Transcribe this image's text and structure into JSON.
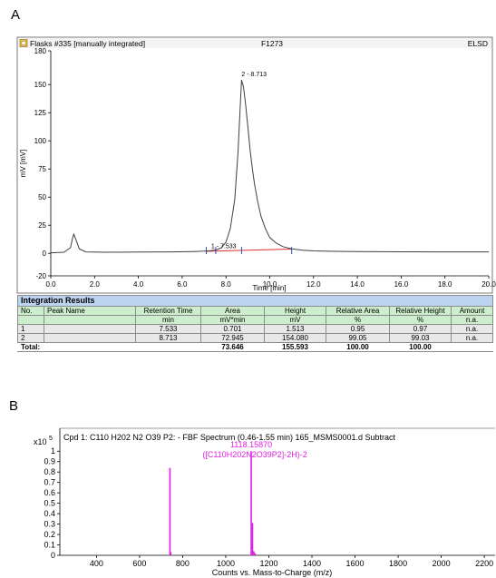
{
  "panel_a_label": "A",
  "panel_b_label": "B",
  "chart_data": [
    {
      "type": "line",
      "header_left": "Flasks #335 [manually integrated]",
      "header_center": "F1273",
      "header_right": "ELSD",
      "ylabel": "mV [mV]",
      "xlabel": "Time [min]",
      "xlim": [
        0,
        20
      ],
      "ylim": [
        -20,
        180
      ],
      "xticks": [
        "0.0",
        "2.0",
        "4.0",
        "6.0",
        "8.0",
        "10.0",
        "12.0",
        "14.0",
        "16.0",
        "18.0",
        "20.0"
      ],
      "yticks": [
        "-20",
        "0",
        "25",
        "50",
        "75",
        "100",
        "125",
        "150",
        "180"
      ],
      "ytick_values": [
        -20,
        0,
        25,
        50,
        75,
        100,
        125,
        150,
        180
      ],
      "trace_color": "#404040",
      "baseline_color": "#e03030",
      "marker_color": "#3050c0",
      "series": [
        {
          "x": [
            0,
            0.6,
            0.9,
            1.0,
            1.05,
            1.15,
            1.3,
            1.6,
            2.5,
            4,
            5.5,
            6.5,
            7.0,
            7.3,
            7.5,
            7.6,
            7.8,
            8.0,
            8.2,
            8.4,
            8.55,
            8.65,
            8.713,
            8.8,
            8.9,
            9.0,
            9.1,
            9.2,
            9.3,
            9.45,
            9.6,
            9.8,
            10.0,
            10.3,
            10.6,
            11.0,
            11.5,
            12,
            13,
            14,
            16,
            18,
            20
          ],
          "y": [
            0.5,
            1,
            5,
            14,
            17,
            12,
            4,
            1.3,
            1.0,
            1.1,
            1.3,
            1.6,
            1.9,
            2.3,
            3.0,
            3.4,
            5,
            10,
            22,
            48,
            90,
            130,
            154.08,
            148,
            132,
            112,
            92,
            76,
            62,
            46,
            33,
            22,
            14,
            9,
            6,
            4,
            2.8,
            2.2,
            1.8,
            1.6,
            1.4,
            1.3,
            1.3
          ]
        }
      ],
      "baseline": {
        "x": [
          7.1,
          11.0
        ],
        "y": [
          1.8,
          3.8
        ]
      },
      "peak_markers_x": [
        7.1,
        7.533,
        8.713,
        11.0
      ],
      "annotations": [
        {
          "text": "1 - 7.533",
          "x": 7.533,
          "y": 1.513
        },
        {
          "text": "2 - 8.713",
          "x": 8.713,
          "y": 154.08
        }
      ]
    },
    {
      "type": "table",
      "title": "Integration Results",
      "header_row1": [
        "No.",
        "Peak Name",
        "Retention Time",
        "Area",
        "Height",
        "Relative Area",
        "Relative Height",
        "Amount"
      ],
      "header_row2": [
        "",
        "",
        "min",
        "mV*min",
        "mV",
        "%",
        "%",
        "n.a."
      ],
      "rows": [
        [
          "1",
          "",
          "7.533",
          "0.701",
          "1.513",
          "0.95",
          "0.97",
          "n.a."
        ],
        [
          "2",
          "",
          "8.713",
          "72.945",
          "154.080",
          "99.05",
          "99.03",
          "n.a."
        ]
      ],
      "total": [
        "Total:",
        "",
        "",
        "73.646",
        "155.593",
        "100.00",
        "100.00",
        ""
      ]
    },
    {
      "type": "bar",
      "title": "Cpd 1: C110 H202 N2 O39 P2: - FBF Spectrum (0.46-1.55 min) 165_MSMS0001.d  Subtract",
      "xlabel": "Counts vs. Mass-to-Charge (m/z)",
      "y_multiplier_label": "x10",
      "y_multiplier_exp": "5",
      "xlim": [
        230,
        2250
      ],
      "ylim": [
        0,
        1.22
      ],
      "xticks": [
        "400",
        "600",
        "800",
        "1000",
        "1200",
        "1400",
        "1600",
        "1800",
        "2000",
        "2200"
      ],
      "xtick_values": [
        400,
        600,
        800,
        1000,
        1200,
        1400,
        1600,
        1800,
        2000,
        2200
      ],
      "yticks": [
        "0",
        "0.1",
        "0.2",
        "0.3",
        "0.4",
        "0.5",
        "0.6",
        "0.7",
        "0.8",
        "0.9",
        "1"
      ],
      "ytick_values": [
        0,
        0.1,
        0.2,
        0.3,
        0.4,
        0.5,
        0.6,
        0.7,
        0.8,
        0.9,
        1
      ],
      "bar_color": "#e020e0",
      "peaks": [
        {
          "mz": 741.0,
          "intensity": 0.84
        },
        {
          "mz": 744.5,
          "intensity": 0.03
        },
        {
          "mz": 1118.16,
          "intensity": 1.0
        },
        {
          "mz": 1124.0,
          "intensity": 0.31
        },
        {
          "mz": 1130.0,
          "intensity": 0.04
        },
        {
          "mz": 1136.0,
          "intensity": 0.02
        }
      ],
      "annotations": [
        {
          "text": "1118.15870",
          "x": 1118.16,
          "y": 1.0
        },
        {
          "text": "([C110H202N2O39P2]-2H)-2",
          "x": 1118.16,
          "y": 0.9
        }
      ]
    }
  ]
}
